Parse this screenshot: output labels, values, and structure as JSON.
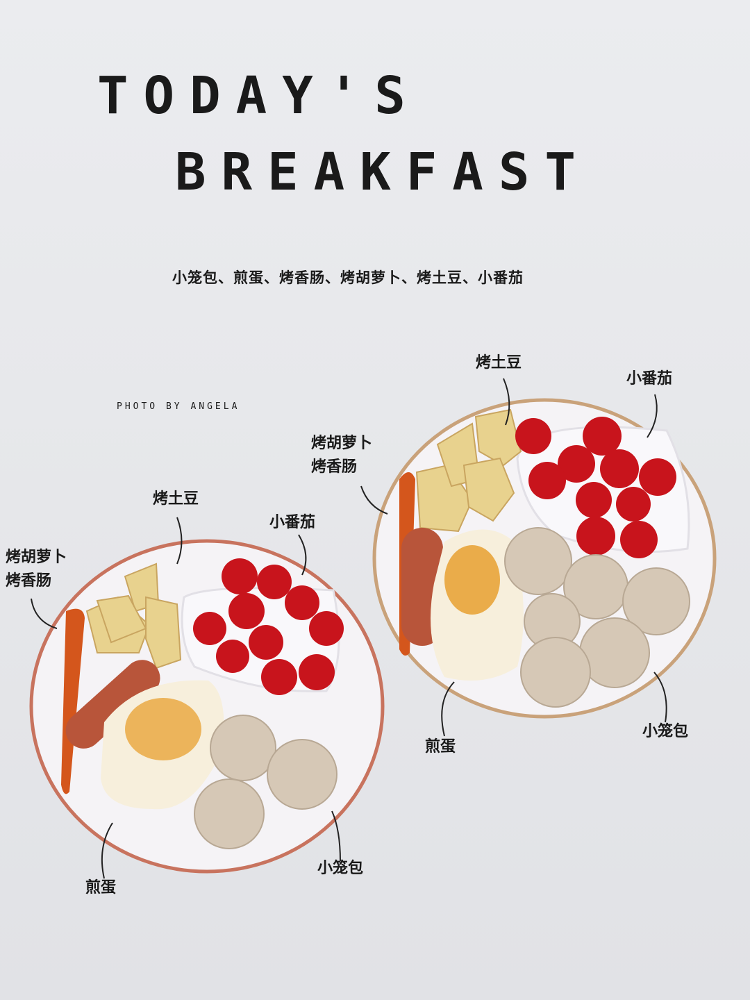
{
  "title": {
    "line1": "TODAY'S",
    "line2": "BREAKFAST"
  },
  "subtitle": "小笼包、煎蛋、烤香肠、烤胡萝卜、烤土豆、小番茄",
  "credit": "PHOTO BY ANGELA",
  "left_plate": {
    "carrot_sausage": [
      "烤胡萝卜",
      "烤香肠"
    ],
    "potato": "烤土豆",
    "tomato": "小番茄",
    "egg": "煎蛋",
    "dumpling": "小笼包"
  },
  "right_plate": {
    "carrot_sausage": [
      "烤胡萝卜",
      "烤香肠"
    ],
    "potato": "烤土豆",
    "tomato": "小番茄",
    "egg": "煎蛋",
    "dumpling": "小笼包"
  },
  "colors": {
    "background": "#e8e9ec",
    "plate": "#f4f2f5",
    "rim_left": "#c8735e",
    "rim_right": "#c9a27a",
    "tomato": "#c8141c",
    "dumpling": "#d6c8b6",
    "egg_yolk": "#e8a030"
  }
}
